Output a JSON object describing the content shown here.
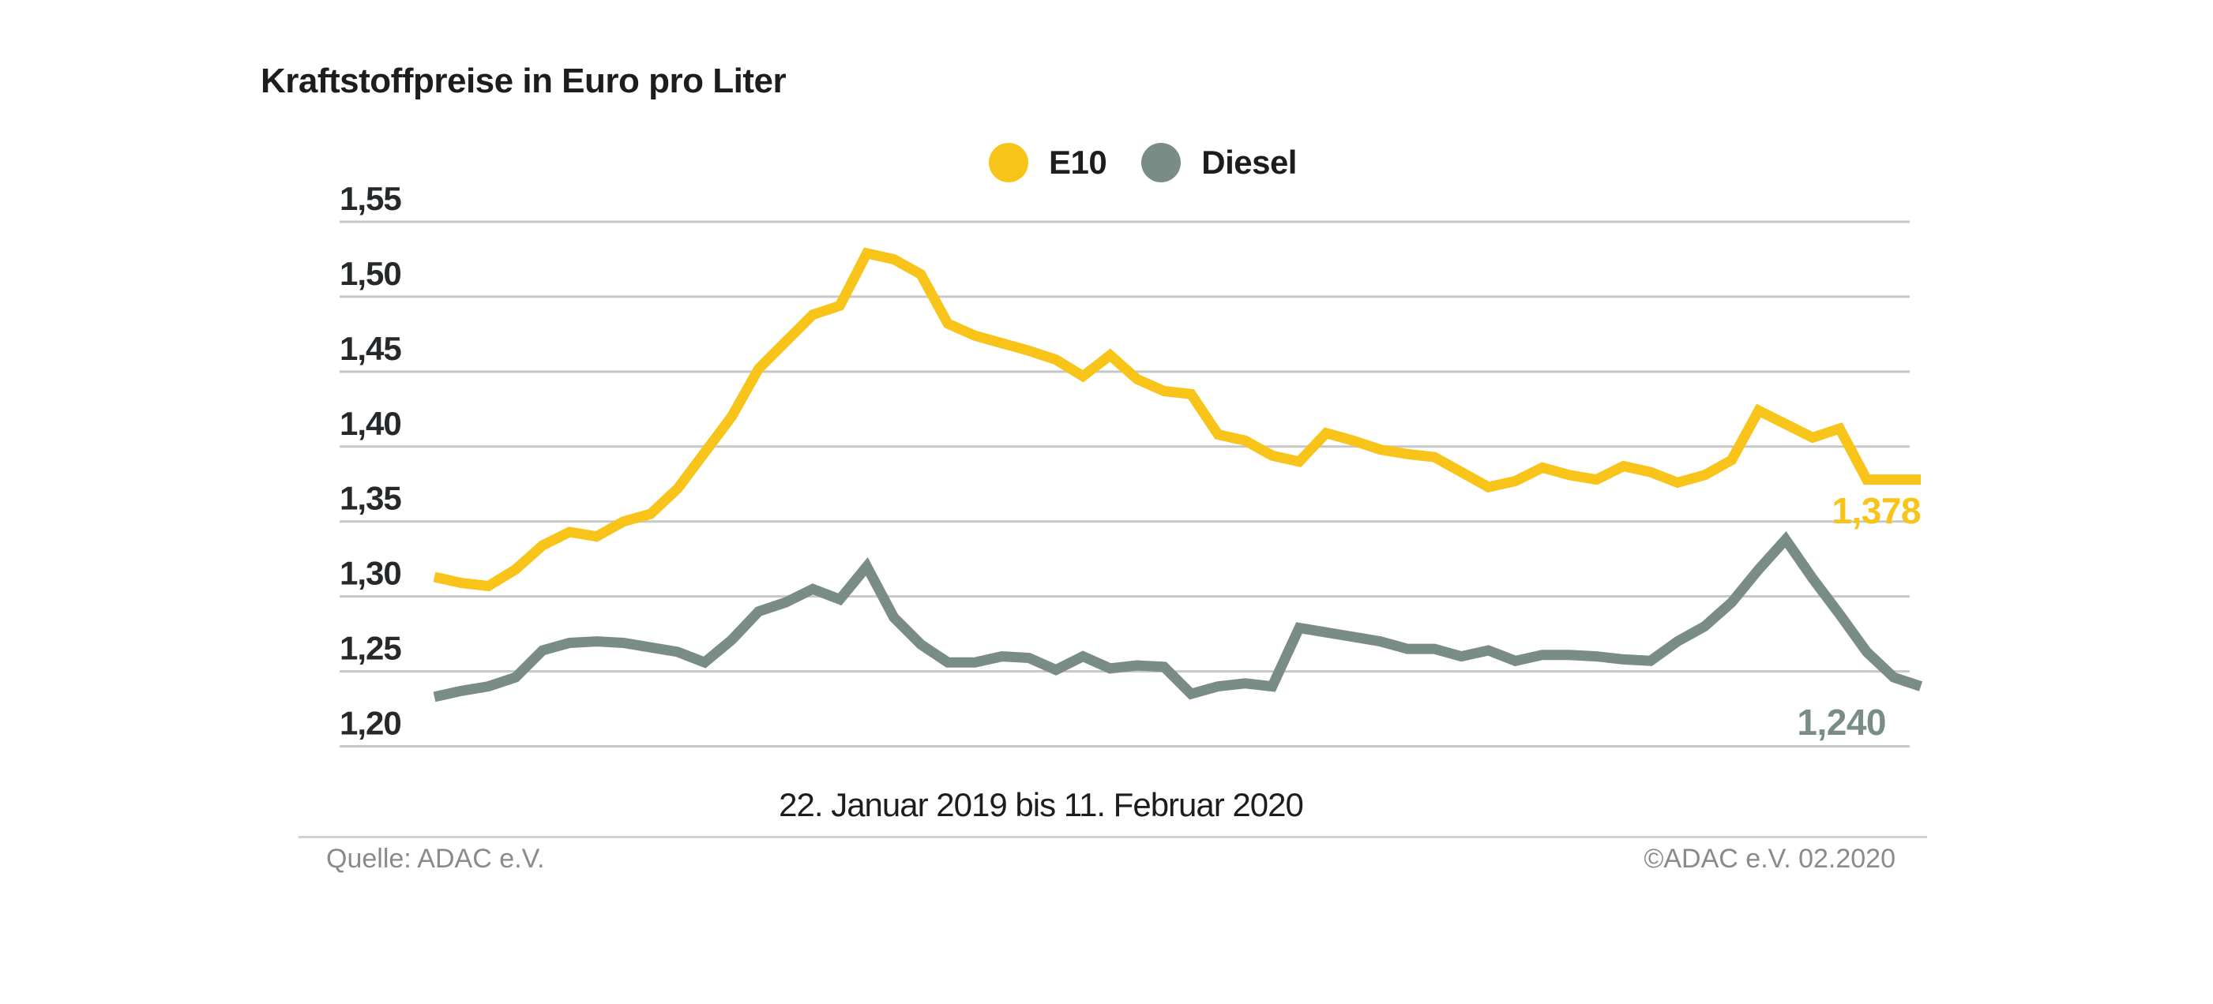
{
  "title": "Kraftstoffpreise in Euro pro Liter",
  "x_caption": "22. Januar 2019 bis 11. Februar 2020",
  "footer": {
    "source": "Quelle: ADAC e.V.",
    "copyright": "©ADAC e.V.  02.2020"
  },
  "colors": {
    "title_text": "#1d1d1b",
    "caption_text": "#1d1d1b",
    "tick_text": "#26292b",
    "grid": "#c7c7c7",
    "footer_text": "#8a8a8a",
    "footer_line": "#d2d2d2",
    "e10": "#f8c41a",
    "diesel": "#7a8c86"
  },
  "chart_data": {
    "type": "line",
    "title": "Kraftstoffpreise in Euro pro Liter",
    "xlabel": "22. Januar 2019 bis 11. Februar 2020",
    "ylabel": "Euro pro Liter",
    "ylim": [
      1.175,
      1.57
    ],
    "y_ticks": [
      1.55,
      1.5,
      1.45,
      1.4,
      1.35,
      1.3,
      1.25,
      1.2
    ],
    "y_tick_labels": [
      "1,55",
      "1,50",
      "1,45",
      "1,40",
      "1,35",
      "1,30",
      "1,25",
      "1,20"
    ],
    "grid": true,
    "legend_position": "top",
    "x_description": "56 weekly readings from 22.01.2019 to 11.02.2020 (no x tick labels shown)",
    "series": [
      {
        "name": "E10",
        "color": "#f8c41a",
        "end_label": "1,378",
        "last_value": 1.378,
        "values": [
          1.313,
          1.309,
          1.307,
          1.318,
          1.334,
          1.343,
          1.34,
          1.35,
          1.355,
          1.372,
          1.396,
          1.42,
          1.452,
          1.47,
          1.488,
          1.494,
          1.529,
          1.525,
          1.515,
          1.482,
          1.474,
          1.469,
          1.464,
          1.458,
          1.447,
          1.461,
          1.445,
          1.437,
          1.435,
          1.408,
          1.404,
          1.394,
          1.39,
          1.409,
          1.404,
          1.398,
          1.395,
          1.393,
          1.383,
          1.373,
          1.377,
          1.386,
          1.381,
          1.378,
          1.387,
          1.383,
          1.376,
          1.381,
          1.391,
          1.424,
          1.415,
          1.406,
          1.412,
          1.378,
          1.378,
          1.378
        ]
      },
      {
        "name": "Diesel",
        "color": "#7a8c86",
        "end_label": "1,240",
        "last_value": 1.24,
        "values": [
          1.233,
          1.237,
          1.24,
          1.246,
          1.264,
          1.269,
          1.27,
          1.269,
          1.266,
          1.263,
          1.256,
          1.271,
          1.29,
          1.296,
          1.305,
          1.298,
          1.32,
          1.286,
          1.268,
          1.256,
          1.256,
          1.26,
          1.259,
          1.251,
          1.26,
          1.252,
          1.254,
          1.253,
          1.235,
          1.24,
          1.242,
          1.24,
          1.279,
          1.276,
          1.273,
          1.27,
          1.265,
          1.265,
          1.26,
          1.264,
          1.257,
          1.261,
          1.261,
          1.26,
          1.258,
          1.257,
          1.27,
          1.28,
          1.296,
          1.318,
          1.338,
          1.312,
          1.288,
          1.263,
          1.246,
          1.24
        ]
      }
    ]
  }
}
